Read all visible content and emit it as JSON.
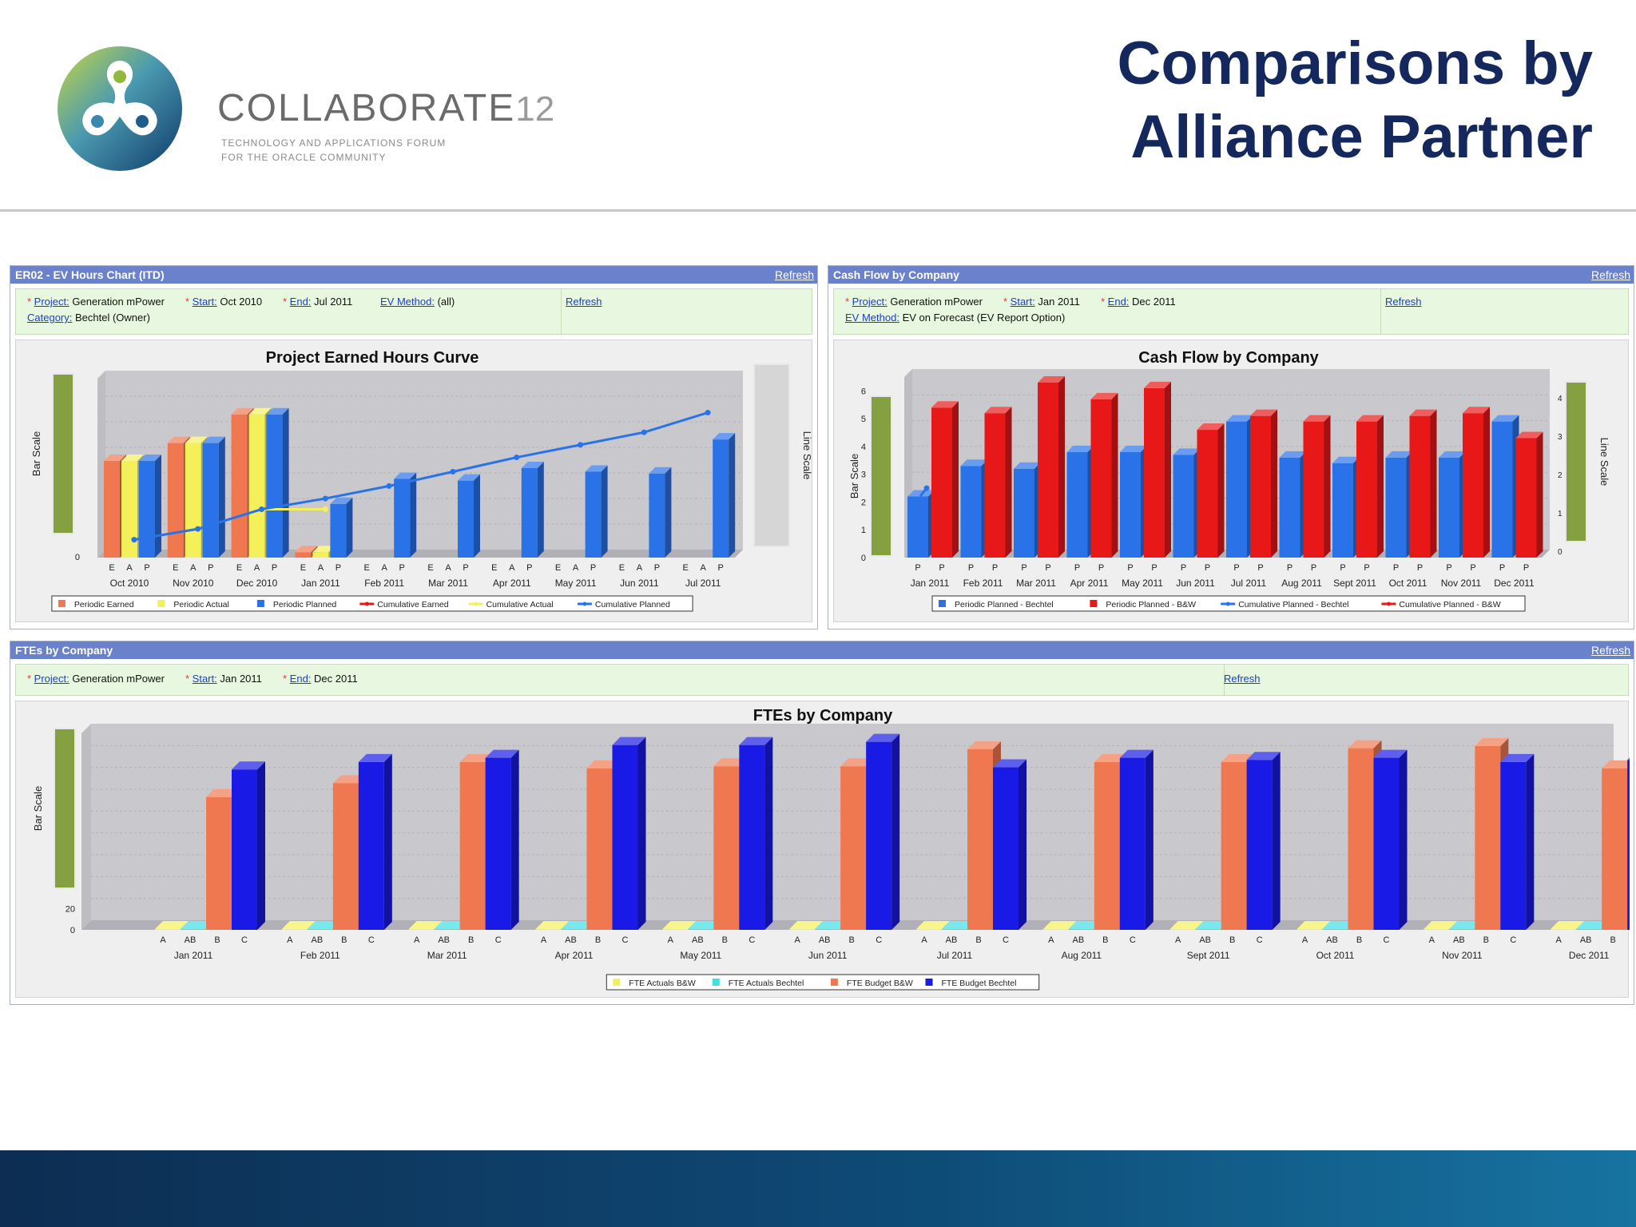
{
  "slide": {
    "title_line1": "Comparisons by",
    "title_line2": "Alliance Partner",
    "brand_name": "COLLABORATE",
    "brand_number": "12",
    "tagline_line1": "TECHNOLOGY AND APPLICATIONS FORUM",
    "tagline_line2": "FOR THE ORACLE COMMUNITY"
  },
  "colors": {
    "header_bar": "#6a82cc",
    "params_bg": "#e8f8e0",
    "title_navy": "#14285e",
    "earned_orange": "#f07850",
    "actual_yellow": "#f4f05a",
    "planned_blue": "#2a72e8",
    "bw_red": "#e81818",
    "bechtel_dark_blue": "#1a1ae6",
    "cyan": "#40e0e6",
    "bar_scale_green": "#84a040"
  },
  "ev_panel": {
    "header": "ER02 - EV Hours Chart (ITD)",
    "refresh": "Refresh",
    "params": {
      "project_label": "Project:",
      "project_value": "Generation mPower",
      "start_label": "Start:",
      "start_value": "Oct 2010",
      "end_label": "End:",
      "end_value": "Jul 2011",
      "method_label": "EV Method:",
      "method_value": "(all)",
      "category_label": "Category:",
      "category_value": "Bechtel (Owner)",
      "refresh": "Refresh"
    }
  },
  "cash_panel": {
    "header": "Cash Flow by Company",
    "refresh": "Refresh",
    "params": {
      "project_label": "Project:",
      "project_value": "Generation mPower",
      "start_label": "Start:",
      "start_value": "Jan 2011",
      "end_label": "End:",
      "end_value": "Dec 2011",
      "method_label": "EV Method:",
      "method_value": "EV on Forecast (EV Report Option)",
      "refresh": "Refresh"
    }
  },
  "fte_panel": {
    "header": "FTEs by Company",
    "refresh": "Refresh",
    "params": {
      "project_label": "Project:",
      "project_value": "Generation mPower",
      "start_label": "Start:",
      "start_value": "Jan 2011",
      "end_label": "End:",
      "end_value": "Dec 2011",
      "refresh": "Refresh"
    }
  },
  "chart_data": [
    {
      "type": "bar",
      "title": "Project Earned Hours Curve",
      "ylabel": "Bar Scale",
      "y2label": "Line Scale",
      "y_ticks": [
        "0"
      ],
      "categories": [
        "Oct 2010",
        "Nov 2010",
        "Dec 2010",
        "Jan 2011",
        "Feb 2011",
        "Mar 2011",
        "Apr 2011",
        "May 2011",
        "Jun 2011",
        "Jul 2011"
      ],
      "sub_categories": [
        "E",
        "A",
        "P"
      ],
      "ylim": [
        0,
        100
      ],
      "series": [
        {
          "name": "Periodic Earned",
          "kind": "bar",
          "color": "#f07850",
          "values": [
            54,
            64,
            80,
            3,
            null,
            null,
            null,
            null,
            null,
            null
          ]
        },
        {
          "name": "Periodic Actual",
          "kind": "bar",
          "color": "#f4f05a",
          "values": [
            54,
            64,
            80,
            3,
            null,
            null,
            null,
            null,
            null,
            null
          ]
        },
        {
          "name": "Periodic Planned",
          "kind": "bar",
          "color": "#2a72e8",
          "values": [
            54,
            64,
            80,
            30,
            44,
            43,
            50,
            48,
            47,
            66
          ]
        },
        {
          "name": "Cumulative Earned",
          "kind": "line",
          "color": "#e81818",
          "values": [
            null,
            null,
            null,
            null,
            null,
            null,
            null,
            null,
            null,
            null
          ]
        },
        {
          "name": "Cumulative Actual",
          "kind": "line",
          "color": "#f4f05a",
          "values": [
            null,
            null,
            27,
            27,
            null,
            null,
            null,
            null,
            null,
            null
          ]
        },
        {
          "name": "Cumulative Planned",
          "kind": "line",
          "color": "#2a72e8",
          "values": [
            10,
            16,
            27,
            33,
            40,
            48,
            56,
            63,
            70,
            81
          ]
        }
      ],
      "legend_position": "bottom"
    },
    {
      "type": "bar",
      "title": "Cash Flow by Company",
      "ylabel": "Bar Scale",
      "y2label": "Line Scale",
      "y_ticks": [
        "0",
        "1",
        "2",
        "3",
        "4",
        "5",
        "6"
      ],
      "y2_ticks": [
        "0",
        "1",
        "2",
        "3",
        "4"
      ],
      "categories": [
        "Jan 2011",
        "Feb 2011",
        "Mar 2011",
        "Apr 2011",
        "May 2011",
        "Jun 2011",
        "Jul 2011",
        "Aug 2011",
        "Sept 2011",
        "Oct 2011",
        "Nov 2011",
        "Dec 2011"
      ],
      "sub_categories": [
        "P",
        "P"
      ],
      "ylim": [
        0,
        6.5
      ],
      "series": [
        {
          "name": "Periodic Planned - Bechtel",
          "kind": "bar",
          "color": "#2a72e8",
          "values": [
            2.2,
            3.3,
            3.2,
            3.8,
            3.8,
            3.7,
            4.9,
            3.6,
            3.4,
            3.6,
            3.6,
            4.9
          ]
        },
        {
          "name": "Periodic Planned - B&W",
          "kind": "bar",
          "color": "#e81818",
          "values": [
            5.4,
            5.2,
            6.3,
            5.7,
            6.1,
            4.6,
            5.1,
            4.9,
            4.9,
            5.1,
            5.2,
            4.3
          ]
        },
        {
          "name": "Cumulative Planned - Bechtel",
          "kind": "line",
          "color": "#2a72e8",
          "values": [
            2.5,
            null,
            null,
            null,
            null,
            null,
            null,
            null,
            null,
            null,
            null,
            null
          ]
        },
        {
          "name": "Cumulative Planned - B&W",
          "kind": "line",
          "color": "#e81818",
          "values": [
            null,
            null,
            null,
            null,
            null,
            null,
            null,
            null,
            null,
            null,
            null,
            null
          ]
        }
      ],
      "legend_position": "bottom"
    },
    {
      "type": "bar",
      "title": "FTEs by Company",
      "ylabel": "Bar Scale",
      "y_ticks": [
        "0",
        "20"
      ],
      "categories": [
        "Jan 2011",
        "Feb 2011",
        "Mar 2011",
        "Apr 2011",
        "May 2011",
        "Jun 2011",
        "Jul 2011",
        "Aug 2011",
        "Sept 2011",
        "Oct 2011",
        "Nov 2011",
        "Dec 2011"
      ],
      "sub_categories": [
        "A",
        "AB",
        "B",
        "C"
      ],
      "ylim": [
        0,
        185
      ],
      "series": [
        {
          "name": "FTE Actuals B&W",
          "kind": "bar",
          "color": "#f4f05a",
          "values": [
            0,
            0,
            0,
            0,
            0,
            0,
            0,
            0,
            0,
            0,
            0,
            0
          ]
        },
        {
          "name": "FTE Actuals Bechtel",
          "kind": "bar",
          "color": "#40e0e6",
          "values": [
            0,
            0,
            0,
            0,
            0,
            0,
            0,
            0,
            0,
            0,
            0,
            0
          ]
        },
        {
          "name": "FTE Budget B&W",
          "kind": "bar",
          "color": "#f07850",
          "values": [
            125,
            138,
            158,
            152,
            154,
            154,
            170,
            158,
            158,
            171,
            173,
            152
          ]
        },
        {
          "name": "FTE Budget Bechtel",
          "kind": "bar",
          "color": "#1a1ae6",
          "values": [
            151,
            158,
            162,
            174,
            174,
            177,
            153,
            162,
            160,
            162,
            158,
            160
          ]
        }
      ],
      "legend_position": "bottom"
    }
  ]
}
